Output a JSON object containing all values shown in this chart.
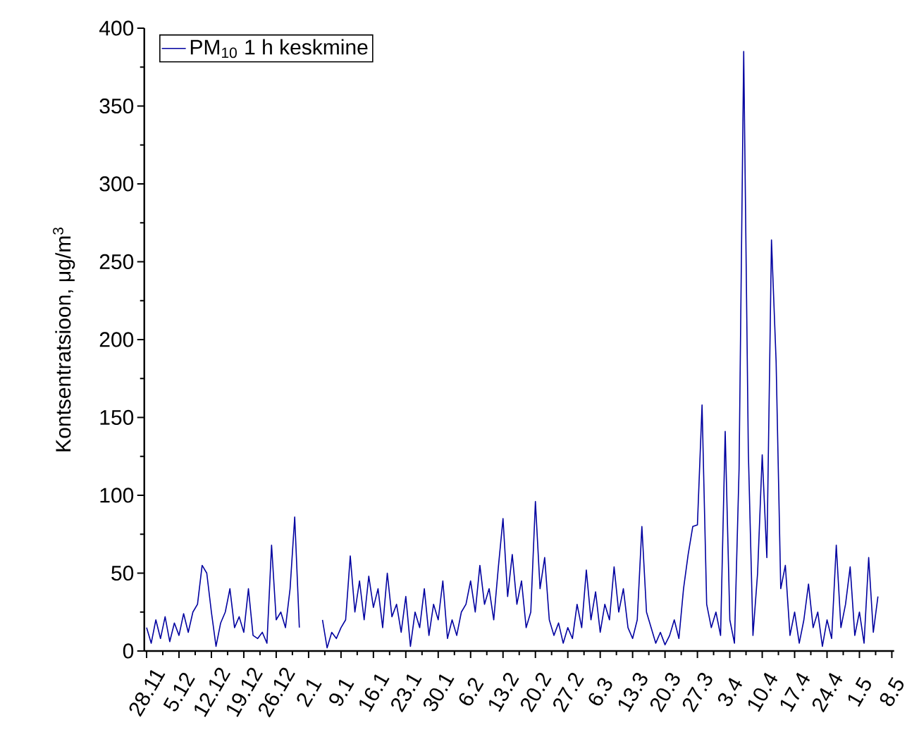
{
  "chart_data": {
    "type": "line",
    "ylabel": "Kontsentratsioon, μg/m$^{3}$",
    "legend": "top left",
    "line_style": "solid",
    "categories": [
      "28.11",
      null,
      null,
      null,
      null,
      null,
      null,
      "5.12",
      null,
      null,
      null,
      null,
      null,
      null,
      "12.12",
      null,
      null,
      null,
      null,
      null,
      null,
      "19.12",
      null,
      null,
      null,
      null,
      null,
      null,
      "26.12",
      null,
      null,
      null,
      null,
      null,
      null,
      "2.1",
      null,
      null,
      null,
      null,
      null,
      null,
      "9.1",
      null,
      null,
      null,
      null,
      null,
      null,
      "16.1",
      null,
      null,
      null,
      null,
      null,
      null,
      "23.1",
      null,
      null,
      null,
      null,
      null,
      null,
      "30.1",
      null,
      null,
      null,
      null,
      null,
      null,
      "6.2",
      null,
      null,
      null,
      null,
      null,
      null,
      "13.2",
      null,
      null,
      null,
      null,
      null,
      null,
      "20.2",
      null,
      null,
      null,
      null,
      null,
      null,
      "27.2",
      null,
      null,
      null,
      null,
      null,
      null,
      "6.3",
      null,
      null,
      null,
      null,
      null,
      null,
      "13.3",
      null,
      null,
      null,
      null,
      null,
      null,
      "20.3",
      null,
      null,
      null,
      null,
      null,
      null,
      "27.3",
      null,
      null,
      null,
      null,
      null,
      null,
      "3.4",
      null,
      null,
      null,
      null,
      null,
      null,
      "10.4",
      null,
      null,
      null,
      null,
      null,
      null,
      "17.4",
      null,
      null,
      null,
      null,
      null,
      null,
      "24.4",
      null,
      null,
      null,
      null,
      null,
      null,
      "1.5",
      null,
      null,
      null,
      null,
      null,
      null,
      "8.5"
    ],
    "series": [
      {
        "name": "PM$_{10}$ 1 h keskmine",
        "color": "#0000a0",
        "values": [
          15,
          5,
          20,
          8,
          22,
          6,
          18,
          10,
          24,
          12,
          25,
          30,
          55,
          50,
          25,
          3,
          18,
          25,
          40,
          15,
          22,
          12,
          40,
          10,
          8,
          12,
          5,
          68,
          20,
          25,
          15,
          40,
          86,
          15,
          null,
          null,
          null,
          null,
          20,
          2,
          12,
          8,
          15,
          20,
          61,
          25,
          45,
          20,
          48,
          28,
          40,
          15,
          50,
          22,
          30,
          12,
          35,
          3,
          25,
          15,
          40,
          10,
          30,
          20,
          45,
          8,
          20,
          10,
          25,
          30,
          45,
          25,
          55,
          30,
          40,
          20,
          54,
          85,
          35,
          62,
          30,
          45,
          15,
          25,
          96,
          40,
          60,
          20,
          10,
          18,
          5,
          15,
          8,
          30,
          15,
          52,
          20,
          38,
          12,
          30,
          20,
          54,
          25,
          40,
          15,
          8,
          20,
          80,
          25,
          15,
          5,
          12,
          4,
          10,
          20,
          8,
          40,
          62,
          80,
          81,
          158,
          30,
          15,
          25,
          10,
          141,
          20,
          5,
          117,
          385,
          128,
          10,
          50,
          126,
          60,
          264,
          186,
          40,
          55,
          10,
          25,
          5,
          20,
          43,
          15,
          25,
          3,
          20,
          8,
          68,
          15,
          30,
          54,
          10,
          25,
          5,
          60,
          12,
          35,
          null,
          null,
          null
        ]
      }
    ],
    "ylim": [
      0,
      400
    ],
    "yticks": [
      0,
      50,
      100,
      150,
      200,
      250,
      300,
      350,
      400
    ]
  }
}
